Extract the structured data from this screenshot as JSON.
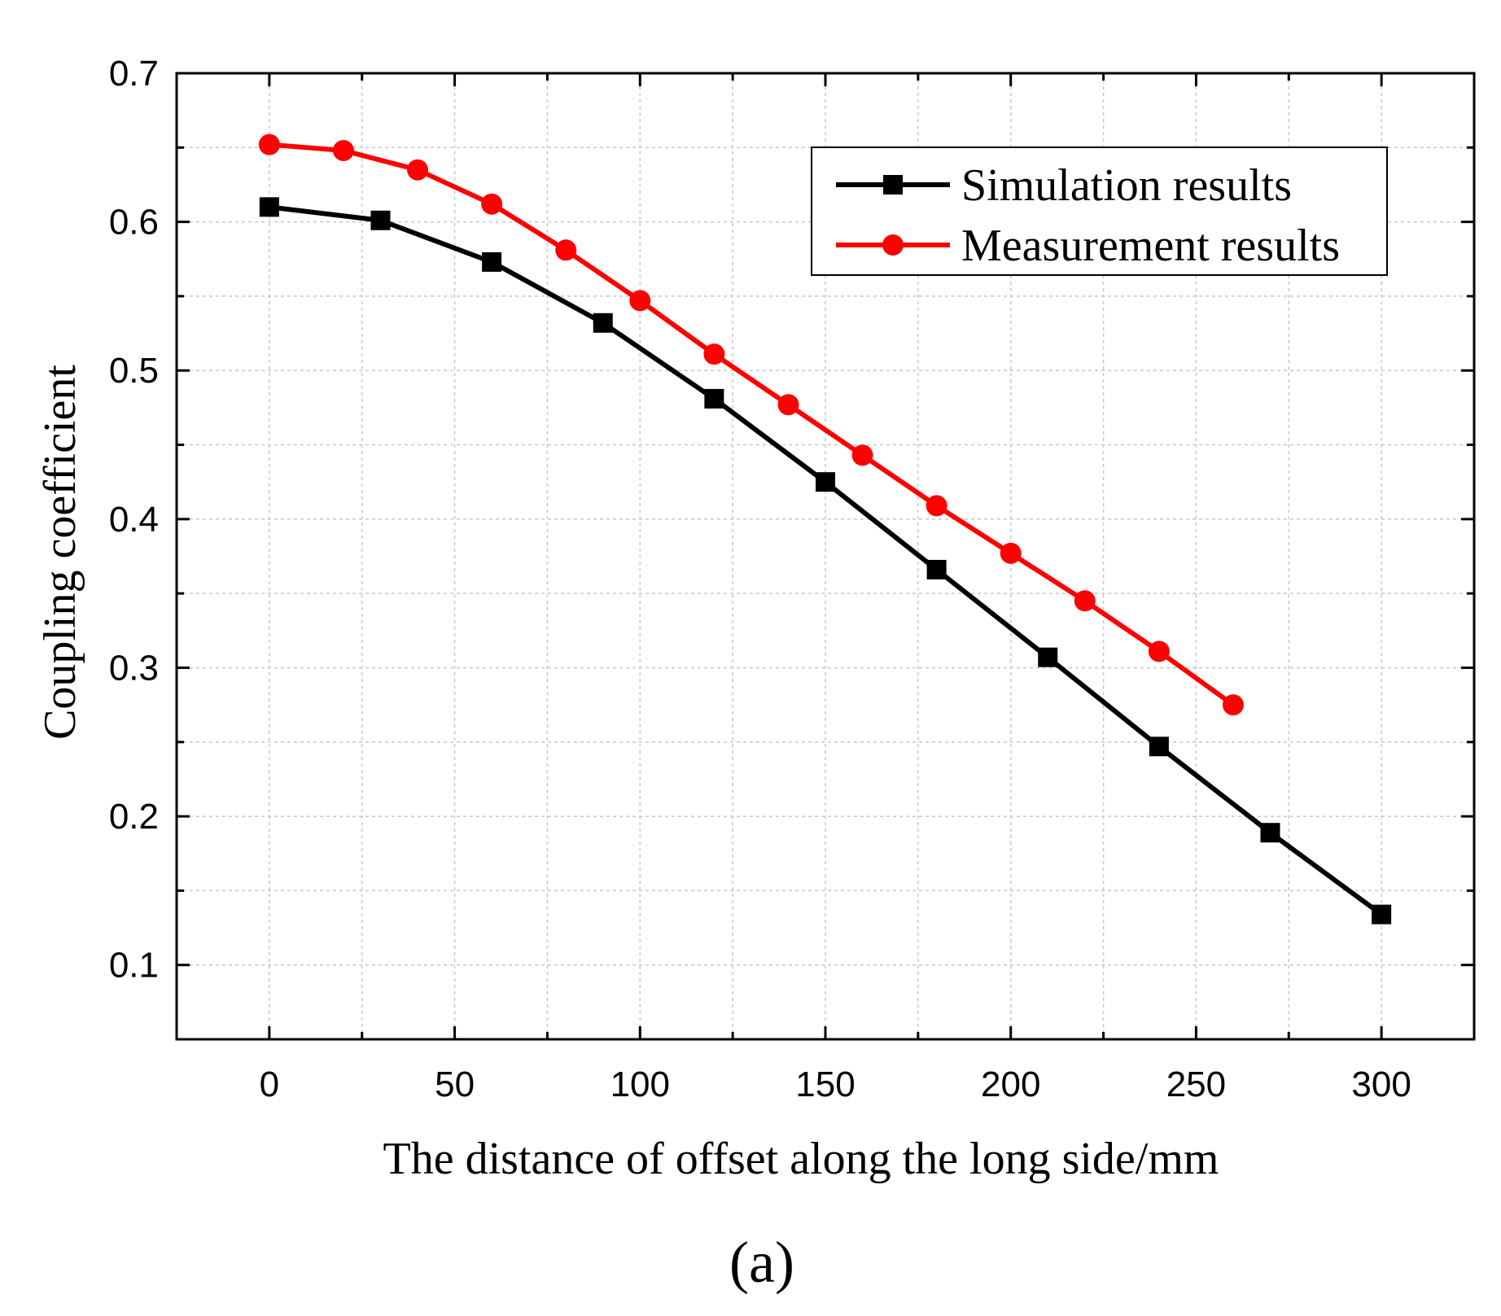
{
  "chart_data": {
    "type": "line",
    "title": "",
    "xlabel": "The distance of offset along the long side/mm",
    "ylabel": "Coupling coefficient",
    "panel_label": "(a)",
    "xlim": [
      -25,
      325
    ],
    "ylim": [
      0.05,
      0.7
    ],
    "x_ticks": [
      0,
      50,
      100,
      150,
      200,
      250,
      300
    ],
    "x_tick_labels": [
      "0",
      "50",
      "100",
      "150",
      "200",
      "250",
      "300"
    ],
    "y_ticks": [
      0.1,
      0.2,
      0.3,
      0.4,
      0.5,
      0.6,
      0.7
    ],
    "y_tick_labels": [
      "0.1",
      "0.2",
      "0.3",
      "0.4",
      "0.5",
      "0.6",
      "0.7"
    ],
    "grid": true,
    "legend_position": "top-right",
    "series": [
      {
        "name": "Simulation results",
        "color": "#000000",
        "marker": "square",
        "x": [
          0,
          30,
          60,
          90,
          120,
          150,
          180,
          210,
          240,
          270,
          300
        ],
        "values": [
          0.61,
          0.601,
          0.573,
          0.532,
          0.481,
          0.425,
          0.366,
          0.307,
          0.247,
          0.189,
          0.134
        ]
      },
      {
        "name": "Measurement results",
        "color": "#ff0000",
        "marker": "circle",
        "x": [
          0,
          20,
          40,
          60,
          80,
          100,
          120,
          140,
          160,
          180,
          200,
          220,
          240,
          260
        ],
        "values": [
          0.652,
          0.648,
          0.635,
          0.612,
          0.581,
          0.547,
          0.511,
          0.477,
          0.443,
          0.409,
          0.377,
          0.345,
          0.311,
          0.275
        ]
      }
    ]
  }
}
